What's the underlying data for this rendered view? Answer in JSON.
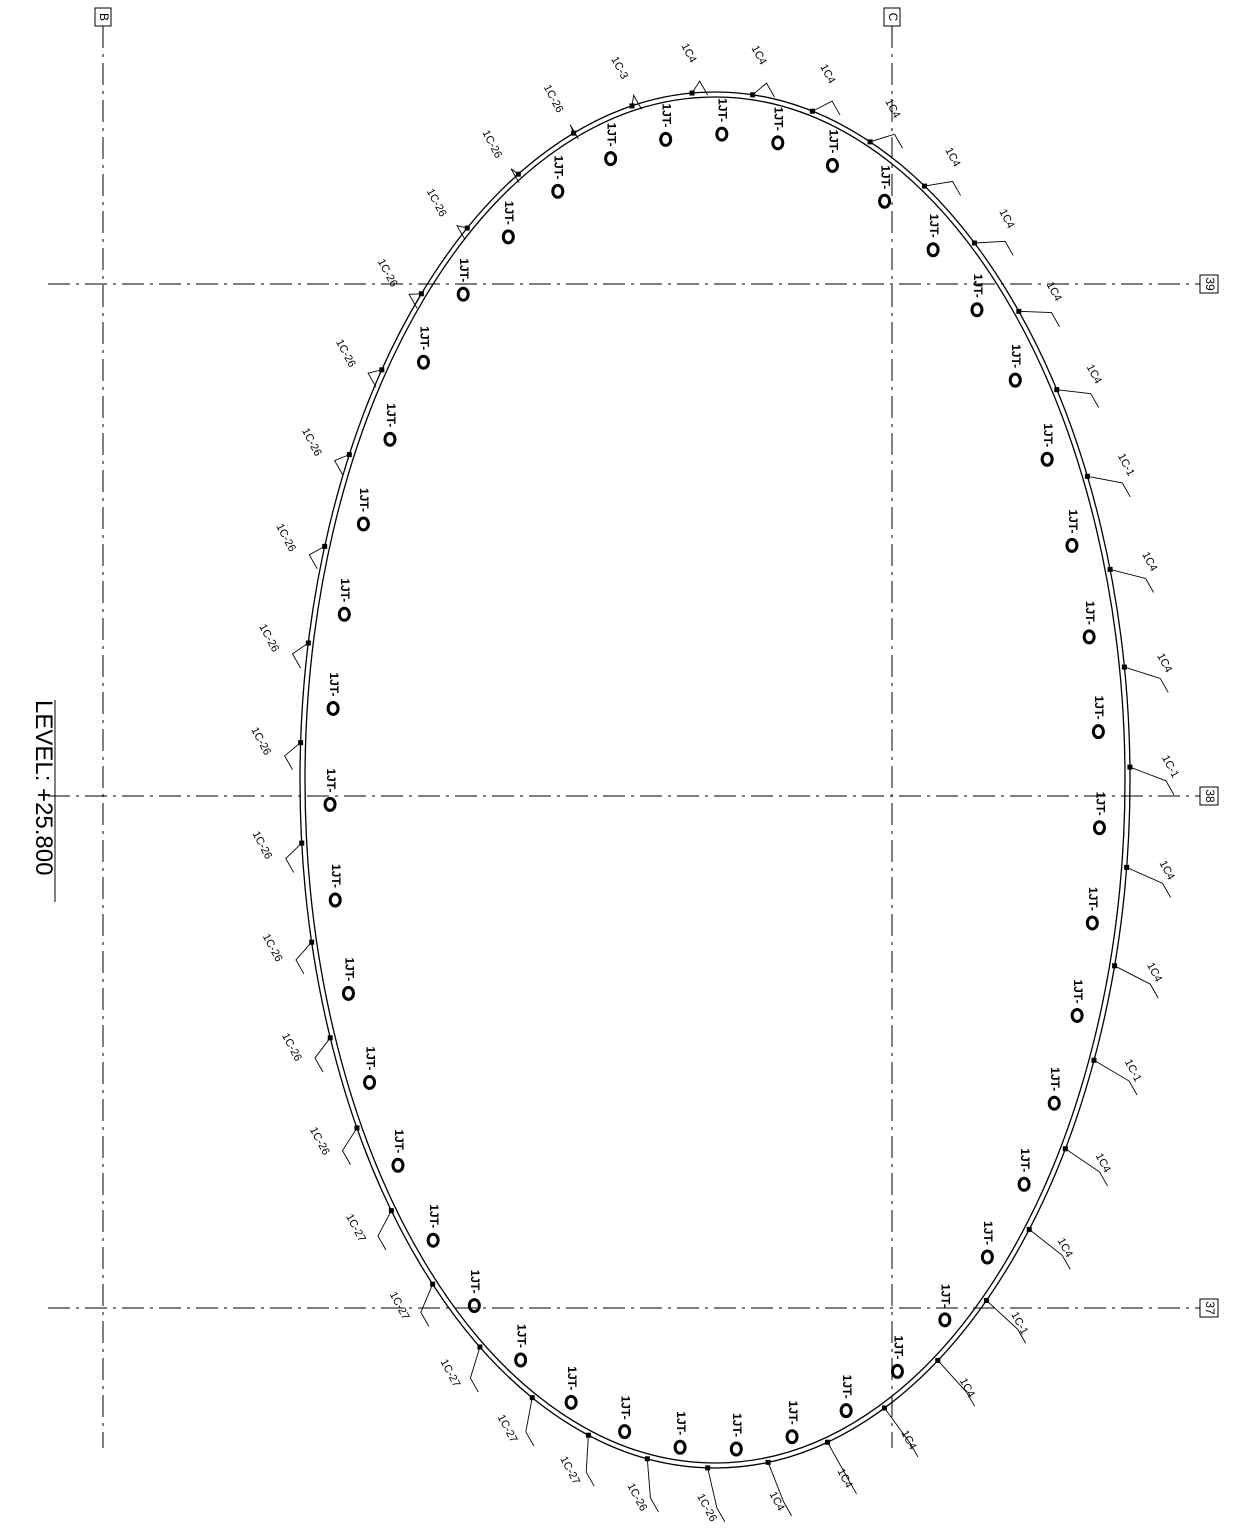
{
  "level_label": "LEVEL: +25.800",
  "grid": {
    "vertical": [
      "B",
      "C"
    ],
    "horizontal": [
      "39",
      "38",
      "37"
    ]
  },
  "column_marks": [
    "1C4",
    "1C4",
    "1C4",
    "1C4",
    "1C4",
    "1C4",
    "1C4",
    "1C-1",
    "1C4",
    "1C4",
    "1C-1",
    "1C4",
    "1C4",
    "1C-1",
    "1C4",
    "1C4",
    "1C-1",
    "1C4",
    "1C4",
    "1C4",
    "1C4",
    "1C-26",
    "1C-26",
    "1C-27",
    "1C-27",
    "1C-27",
    "1C-27",
    "1C-27",
    "1C-26",
    "1C-26",
    "1C-26",
    "1C-26",
    "1C-26",
    "1C-26",
    "1C-26",
    "1C-26",
    "1C-26",
    "1C-26",
    "1C-26",
    "1C-26",
    "1C-26",
    "1C-3",
    "1C4"
  ],
  "joint_mark": "1JT-"
}
